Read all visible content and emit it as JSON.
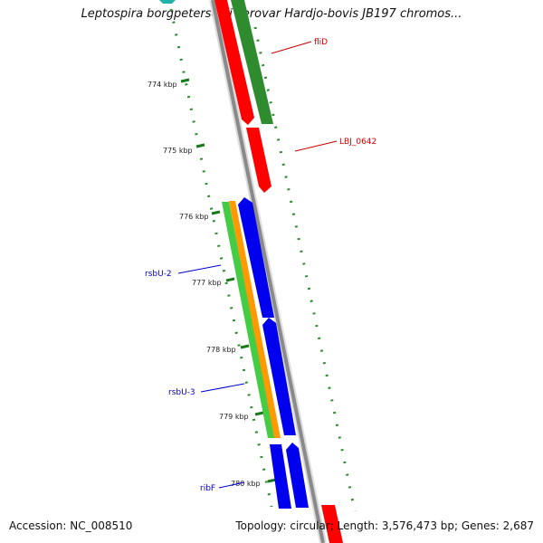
{
  "title": "Leptospira borgpetersenii serovar Hardjo-bovis JB197 chromos...",
  "accession_text": "Accession: NC_008510",
  "topology_text": "Topology: circular; Length: 3,576,473 bp; Genes: 2,687",
  "ticks": [
    "774 kbp",
    "775 kbp",
    "776 kbp",
    "777 kbp",
    "778 kbp",
    "779 kbp",
    "780 kbp"
  ],
  "gene_labels": [
    {
      "text": "fliD",
      "color": "#cc0000"
    },
    {
      "text": "LBJ_0642",
      "color": "#cc0000"
    },
    {
      "text": "rsbU-2",
      "color": "#0000cc"
    },
    {
      "text": "rsbU-3",
      "color": "#0000cc"
    },
    {
      "text": "ribF",
      "color": "#0000cc"
    }
  ],
  "colors": {
    "backbone": "#8a8a8a",
    "outer_dots": "#2e8b2e",
    "red": "#ff0000",
    "dark_green": "#2e8b2e",
    "blue": "#0000ee",
    "orange": "#ff9900",
    "light_green": "#44cc44",
    "teal": "#20b2aa"
  }
}
